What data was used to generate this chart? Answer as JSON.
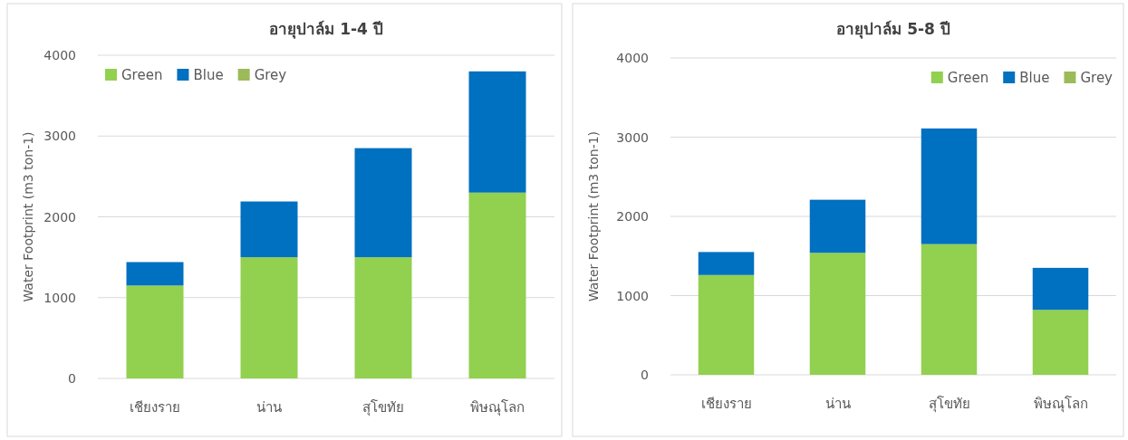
{
  "chart_data": [
    {
      "type": "bar",
      "title": "อายุปาล์ม 1-4 ปี",
      "ylabel": "Water Footprint (m3 ton-1)",
      "categories": [
        "เชียงราย",
        "น่าน",
        "สุโขทัย",
        "พิษณุโลก"
      ],
      "stacked": true,
      "ylim": [
        0,
        4000
      ],
      "yticks": [
        0,
        1000,
        2000,
        3000,
        4000
      ],
      "grid": "y",
      "legend": "top left",
      "series": [
        {
          "name": "Green",
          "color": "#92d050",
          "values": [
            1150,
            1500,
            1500,
            2300
          ]
        },
        {
          "name": "Blue",
          "color": "#0070c0",
          "values": [
            290,
            690,
            1350,
            1500
          ]
        },
        {
          "name": "Grey",
          "color": "#9bbb59",
          "values": [
            null,
            null,
            null,
            null
          ]
        }
      ]
    },
    {
      "type": "bar",
      "title": "อายุปาล์ม 5-8 ปี",
      "ylabel": "Water Footprint (m3 ton-1)",
      "categories": [
        "เชียงราย",
        "น่าน",
        "สุโขทัย",
        "พิษณุโลก"
      ],
      "stacked": true,
      "ylim": [
        0,
        4000
      ],
      "yticks": [
        0,
        1000,
        2000,
        3000,
        4000
      ],
      "grid": "y",
      "legend": "top right",
      "series": [
        {
          "name": "Green",
          "color": "#92d050",
          "values": [
            1260,
            1540,
            1650,
            820
          ]
        },
        {
          "name": "Blue",
          "color": "#0070c0",
          "values": [
            290,
            670,
            1460,
            530
          ]
        },
        {
          "name": "Grey",
          "color": "#9bbb59",
          "values": [
            null,
            null,
            null,
            null
          ]
        }
      ]
    }
  ]
}
